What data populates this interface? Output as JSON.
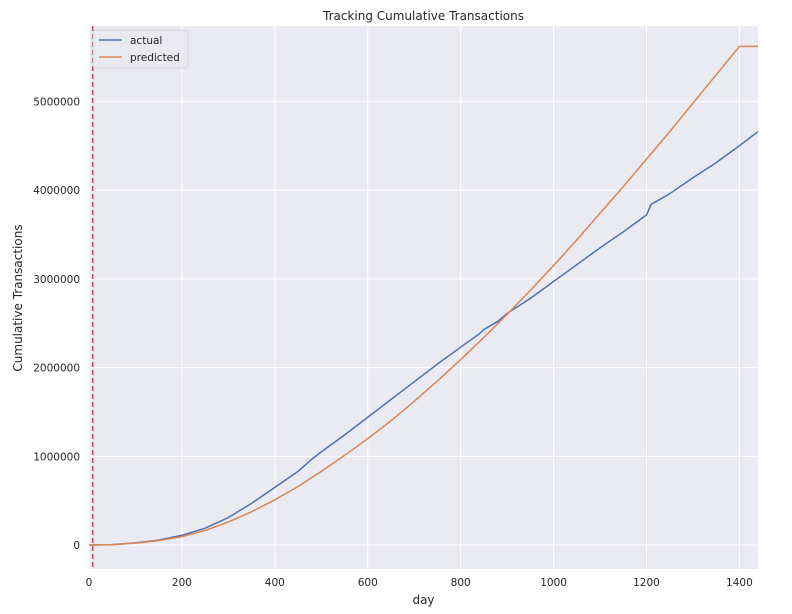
{
  "chart_data": {
    "type": "line",
    "title": "Tracking Cumulative Transactions",
    "xlabel": "day",
    "ylabel": "Cumulative Transactions",
    "xlim": [
      0,
      1440
    ],
    "ylim": [
      -270000,
      5850000
    ],
    "x_ticks": [
      0,
      200,
      400,
      600,
      800,
      1000,
      1200,
      1400
    ],
    "x_tick_labels": [
      "0",
      "200",
      "400",
      "600",
      "800",
      "1000",
      "1200",
      "1400"
    ],
    "y_ticks": [
      0,
      1000000,
      2000000,
      3000000,
      4000000,
      5000000
    ],
    "y_tick_labels": [
      "0",
      "1000000",
      "2000000",
      "3000000",
      "4000000",
      "5000000"
    ],
    "grid": true,
    "legend_position": "top-left",
    "vline": {
      "x": 8,
      "color": "#c44e52",
      "style": "dashed"
    },
    "series": [
      {
        "name": "actual",
        "color": "#4c72b0",
        "x": [
          0,
          50,
          100,
          150,
          200,
          250,
          300,
          350,
          400,
          450,
          480,
          500,
          550,
          600,
          650,
          700,
          750,
          800,
          840,
          850,
          880,
          900,
          950,
          1000,
          1050,
          1100,
          1150,
          1200,
          1210,
          1250,
          1300,
          1350,
          1400,
          1440
        ],
        "y": [
          0,
          5000,
          25000,
          55000,
          110000,
          190000,
          310000,
          470000,
          650000,
          830000,
          970000,
          1050000,
          1240000,
          1440000,
          1640000,
          1840000,
          2040000,
          2230000,
          2380000,
          2430000,
          2520000,
          2610000,
          2780000,
          2970000,
          3160000,
          3350000,
          3530000,
          3720000,
          3840000,
          3960000,
          4140000,
          4310000,
          4500000,
          4660000
        ]
      },
      {
        "name": "predicted",
        "color": "#dd8452",
        "x": [
          0,
          50,
          100,
          150,
          200,
          250,
          300,
          350,
          400,
          450,
          500,
          550,
          600,
          650,
          700,
          750,
          800,
          850,
          900,
          950,
          1000,
          1050,
          1100,
          1150,
          1200,
          1250,
          1300,
          1350,
          1400,
          1440
        ],
        "y": [
          0,
          5000,
          22000,
          50000,
          95000,
          165000,
          260000,
          375000,
          510000,
          660000,
          830000,
          1010000,
          1200000,
          1400000,
          1620000,
          1850000,
          2090000,
          2340000,
          2600000,
          2870000,
          3150000,
          3440000,
          3740000,
          4040000,
          4350000,
          4660000,
          4980000,
          5300000,
          5620000,
          5620000
        ]
      }
    ]
  }
}
